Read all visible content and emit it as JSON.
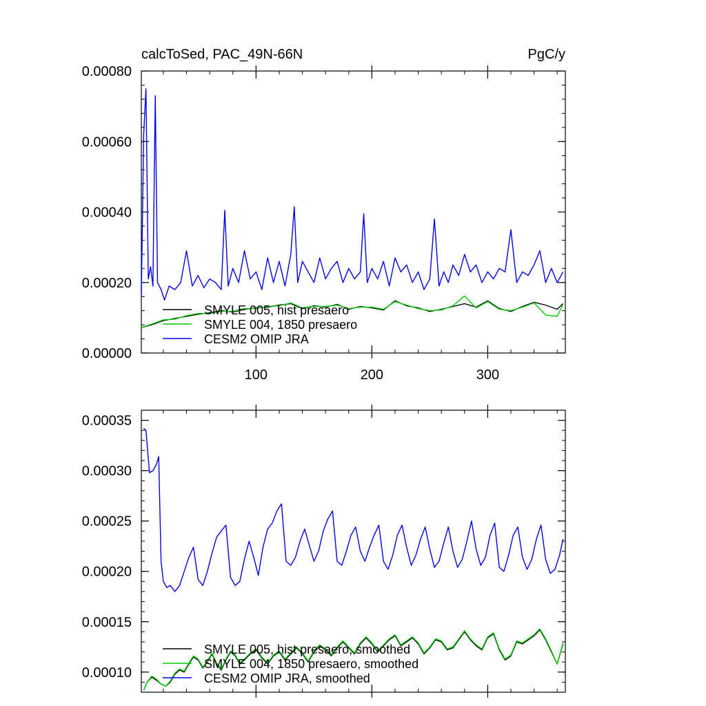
{
  "figure": {
    "title_left": "calcToSed, PAC_49N-66N",
    "title_right": "PgC/y"
  },
  "chart_data": [
    {
      "type": "line",
      "title": "",
      "xlabel": "",
      "ylabel": "",
      "xlim": [
        1,
        367
      ],
      "ylim": [
        0,
        0.0008
      ],
      "xticks": [
        100,
        200,
        300
      ],
      "xtick_labels": [
        "100",
        "200",
        "300"
      ],
      "yticks": [
        0,
        0.0002,
        0.0004,
        0.0006,
        0.0008
      ],
      "ytick_labels": [
        "0.00000",
        "0.00020",
        "0.00040",
        "0.00060",
        "0.00080"
      ],
      "grid": false,
      "legend_position": "lower-left",
      "series": [
        {
          "name": "SMYLE 005, hist presaero",
          "color": "#000000",
          "x": [
            1,
            10,
            20,
            30,
            40,
            50,
            60,
            70,
            80,
            90,
            100,
            110,
            120,
            130,
            140,
            150,
            160,
            170,
            180,
            190,
            200,
            210,
            220,
            230,
            240,
            250,
            260,
            270,
            280,
            290,
            300,
            310,
            320,
            330,
            340,
            350,
            360,
            365
          ],
          "y": [
            7.2e-05,
            8e-05,
            9.2e-05,
            9.8e-05,
            0.000104,
            0.00011,
            0.000114,
            0.00012,
            0.000116,
            0.000124,
            0.000128,
            0.00013,
            0.000136,
            0.00014,
            0.000126,
            0.000134,
            0.00013,
            0.000138,
            0.000124,
            0.000132,
            0.000128,
            0.000122,
            0.000148,
            0.000134,
            0.000128,
            0.000118,
            0.000124,
            0.000132,
            0.00014,
            0.00013,
            0.000148,
            0.000126,
            0.000118,
            0.000132,
            0.000144,
            0.000136,
            0.000124,
            0.00014
          ]
        },
        {
          "name": "SMYLE 004, 1850 presaero",
          "color": "#00cc00",
          "x": [
            1,
            10,
            20,
            30,
            40,
            50,
            60,
            70,
            80,
            90,
            100,
            110,
            120,
            130,
            140,
            150,
            160,
            170,
            180,
            190,
            200,
            210,
            220,
            230,
            240,
            250,
            260,
            270,
            280,
            290,
            300,
            310,
            320,
            330,
            340,
            350,
            360,
            365
          ],
          "y": [
            7.2e-05,
            8.2e-05,
            9.4e-05,
            9.6e-05,
            0.000106,
            0.000112,
            0.000112,
            0.000118,
            0.000118,
            0.000126,
            0.000126,
            0.000132,
            0.000134,
            0.000142,
            0.000128,
            0.000132,
            0.000132,
            0.000136,
            0.000126,
            0.00013,
            0.00013,
            0.000124,
            0.000146,
            0.000136,
            0.000126,
            0.00012,
            0.000122,
            0.000134,
            0.000162,
            0.000128,
            0.000146,
            0.000124,
            0.00012,
            0.00013,
            0.000142,
            0.000108,
            0.000104,
            0.000138
          ]
        },
        {
          "name": "CESM2 OMIP JRA",
          "color": "#0000ee",
          "x": [
            1,
            3,
            5,
            7,
            9,
            11,
            13,
            15,
            18,
            21,
            25,
            30,
            35,
            40,
            45,
            50,
            55,
            60,
            65,
            70,
            73,
            76,
            80,
            85,
            90,
            95,
            100,
            105,
            110,
            115,
            120,
            125,
            130,
            133,
            136,
            140,
            145,
            150,
            155,
            160,
            165,
            170,
            175,
            180,
            185,
            190,
            193,
            196,
            200,
            205,
            210,
            215,
            220,
            225,
            230,
            235,
            240,
            245,
            250,
            254,
            258,
            262,
            266,
            270,
            275,
            280,
            285,
            290,
            295,
            300,
            305,
            310,
            315,
            320,
            325,
            330,
            335,
            340,
            345,
            350,
            355,
            360,
            365
          ],
          "y": [
            0.000165,
            0.00062,
            0.00075,
            0.00021,
            0.000245,
            0.00019,
            0.00073,
            0.0002,
            0.00018,
            0.00015,
            0.00019,
            0.00018,
            0.0002,
            0.00029,
            0.00019,
            0.00022,
            0.000185,
            0.00021,
            0.0002,
            0.00018,
            0.000405,
            0.00019,
            0.00024,
            0.0002,
            0.00029,
            0.00021,
            0.00023,
            0.00018,
            0.00027,
            0.0002,
            0.00026,
            0.00019,
            0.00028,
            0.000415,
            0.0002,
            0.00026,
            0.00023,
            0.0002,
            0.00027,
            0.00021,
            0.00024,
            0.00026,
            0.0002,
            0.00024,
            0.00021,
            0.00023,
            0.000395,
            0.0002,
            0.00024,
            0.00021,
            0.00026,
            0.00019,
            0.00027,
            0.00023,
            0.00025,
            0.0002,
            0.00023,
            0.00018,
            0.00021,
            0.00038,
            0.00019,
            0.00023,
            0.0002,
            0.00025,
            0.00022,
            0.00028,
            0.00023,
            0.00025,
            0.0002,
            0.00023,
            0.00021,
            0.00024,
            0.00023,
            0.00035,
            0.0002,
            0.00023,
            0.00022,
            0.00025,
            0.00029,
            0.0002,
            0.00024,
            0.0002,
            0.00023
          ]
        }
      ]
    },
    {
      "type": "line",
      "title": "",
      "xlabel": "",
      "ylabel": "",
      "xlim": [
        1,
        367
      ],
      "ylim": [
        8e-05,
        0.00036
      ],
      "xticks": [
        100,
        200,
        300
      ],
      "xtick_labels": [
        "",
        "",
        ""
      ],
      "yticks": [
        0.0001,
        0.00015,
        0.0002,
        0.00025,
        0.0003,
        0.00035
      ],
      "ytick_labels": [
        "0.00010",
        "0.00015",
        "0.00020",
        "0.00025",
        "0.00030",
        "0.00035"
      ],
      "grid": false,
      "legend_position": "lower-left",
      "series": [
        {
          "name": "SMYLE 005, hist presaero, smoothed",
          "color": "#000000",
          "x": [
            3,
            6,
            10,
            14,
            18,
            22,
            26,
            30,
            34,
            38,
            42,
            46,
            50,
            54,
            58,
            62,
            66,
            70,
            74,
            78,
            82,
            86,
            90,
            95,
            100,
            105,
            110,
            115,
            120,
            125,
            130,
            135,
            140,
            145,
            150,
            155,
            160,
            165,
            170,
            175,
            180,
            185,
            190,
            195,
            200,
            205,
            210,
            215,
            220,
            225,
            230,
            235,
            240,
            245,
            250,
            255,
            260,
            265,
            270,
            275,
            280,
            285,
            290,
            295,
            300,
            305,
            310,
            315,
            320,
            325,
            330,
            335,
            340,
            345,
            350,
            355,
            360,
            365
          ],
          "y": [
            8.2e-05,
            9e-05,
            9.5e-05,
            9.2e-05,
            8.8e-05,
            8.6e-05,
            9e-05,
            9.8e-05,
            0.000102,
            0.0001,
            0.000108,
            0.000115,
            0.000112,
            0.000104,
            0.00011,
            0.000118,
            0.000108,
            0.000102,
            0.000112,
            0.00012,
            0.000116,
            0.000108,
            0.000112,
            0.000118,
            0.000122,
            0.000114,
            0.000108,
            0.000116,
            0.00012,
            0.000112,
            0.000118,
            0.000124,
            0.000118,
            0.00011,
            0.00012,
            0.000126,
            0.000122,
            0.000116,
            0.000124,
            0.00013,
            0.000124,
            0.000118,
            0.000128,
            0.000134,
            0.000128,
            0.00012,
            0.000126,
            0.000132,
            0.000136,
            0.000126,
            0.00013,
            0.000134,
            0.000128,
            0.000118,
            0.000124,
            0.000132,
            0.00013,
            0.000122,
            0.000124,
            0.000132,
            0.00014,
            0.000132,
            0.000126,
            0.000122,
            0.000134,
            0.000138,
            0.000122,
            0.000112,
            0.000116,
            0.00013,
            0.000128,
            0.000132,
            0.000136,
            0.000142,
            0.000132,
            0.00012,
            0.000108,
            0.000128
          ]
        },
        {
          "name": "SMYLE 004, 1850 presaero, smoothed",
          "color": "#00cc00",
          "x": [
            3,
            6,
            10,
            14,
            18,
            22,
            26,
            30,
            34,
            38,
            42,
            46,
            50,
            54,
            58,
            62,
            66,
            70,
            74,
            78,
            82,
            86,
            90,
            95,
            100,
            105,
            110,
            115,
            120,
            125,
            130,
            135,
            140,
            145,
            150,
            155,
            160,
            165,
            170,
            175,
            180,
            185,
            190,
            195,
            200,
            205,
            210,
            215,
            220,
            225,
            230,
            235,
            240,
            245,
            250,
            255,
            260,
            265,
            270,
            275,
            280,
            285,
            290,
            295,
            300,
            305,
            310,
            315,
            320,
            325,
            330,
            335,
            340,
            345,
            350,
            355,
            360,
            365
          ],
          "y": [
            8.2e-05,
            9e-05,
            9.6e-05,
            9.3e-05,
            8.8e-05,
            8.6e-05,
            9.1e-05,
            9.9e-05,
            0.000103,
            0.000101,
            0.000109,
            0.000116,
            0.000113,
            0.000105,
            0.000111,
            0.000119,
            0.000109,
            0.000103,
            0.000113,
            0.000121,
            0.000117,
            0.000109,
            0.000113,
            0.000119,
            0.000123,
            0.000115,
            0.000109,
            0.000117,
            0.000121,
            0.000113,
            0.000119,
            0.000125,
            0.000119,
            0.000111,
            0.000121,
            0.000127,
            0.000123,
            0.000117,
            0.000125,
            0.000131,
            0.000125,
            0.000119,
            0.000129,
            0.000135,
            0.000129,
            0.000121,
            0.000127,
            0.000133,
            0.000137,
            0.000127,
            0.000131,
            0.000135,
            0.000129,
            0.000119,
            0.000125,
            0.000133,
            0.000131,
            0.000123,
            0.000125,
            0.000133,
            0.000141,
            0.000133,
            0.000127,
            0.000123,
            0.000135,
            0.000139,
            0.000123,
            0.000113,
            0.000117,
            0.000131,
            0.000129,
            0.000133,
            0.000137,
            0.000143,
            0.000133,
            0.000121,
            0.000108,
            0.000129
          ]
        },
        {
          "name": "CESM2 OMIP JRA, smoothed",
          "color": "#0000ee",
          "x": [
            3,
            5,
            8,
            11,
            14,
            16,
            18,
            20,
            23,
            26,
            30,
            34,
            38,
            42,
            46,
            50,
            54,
            58,
            62,
            66,
            70,
            74,
            78,
            82,
            86,
            90,
            94,
            98,
            102,
            106,
            110,
            114,
            118,
            122,
            126,
            130,
            134,
            138,
            142,
            146,
            150,
            154,
            158,
            162,
            166,
            170,
            174,
            178,
            182,
            186,
            190,
            194,
            198,
            202,
            206,
            210,
            214,
            218,
            222,
            226,
            230,
            234,
            238,
            242,
            246,
            250,
            254,
            258,
            262,
            266,
            270,
            274,
            278,
            282,
            286,
            290,
            294,
            298,
            302,
            306,
            310,
            314,
            318,
            322,
            326,
            330,
            334,
            338,
            342,
            346,
            350,
            354,
            358,
            362,
            365
          ],
          "y": [
            0.000342,
            0.00034,
            0.000298,
            0.0003,
            0.000306,
            0.000314,
            0.00021,
            0.00019,
            0.000184,
            0.000186,
            0.00018,
            0.000186,
            0.0002,
            0.000214,
            0.000224,
            0.000192,
            0.000186,
            0.0002,
            0.000218,
            0.000234,
            0.00024,
            0.000246,
            0.000194,
            0.000186,
            0.00019,
            0.000212,
            0.00023,
            0.000214,
            0.000196,
            0.000224,
            0.000242,
            0.000248,
            0.00026,
            0.000267,
            0.00021,
            0.000206,
            0.000214,
            0.00023,
            0.000242,
            0.000226,
            0.00021,
            0.00022,
            0.00024,
            0.000252,
            0.00026,
            0.00021,
            0.000206,
            0.00022,
            0.000236,
            0.000244,
            0.00022,
            0.00021,
            0.000224,
            0.000236,
            0.000246,
            0.00021,
            0.000202,
            0.000216,
            0.000236,
            0.000246,
            0.000224,
            0.000206,
            0.000216,
            0.000232,
            0.000244,
            0.000222,
            0.000204,
            0.00021,
            0.000228,
            0.000244,
            0.00022,
            0.000204,
            0.000212,
            0.00023,
            0.00025,
            0.000222,
            0.000206,
            0.000214,
            0.000236,
            0.000248,
            0.000204,
            0.0002,
            0.000216,
            0.000236,
            0.000244,
            0.000214,
            0.000202,
            0.000212,
            0.000232,
            0.000246,
            0.000212,
            0.000198,
            0.000202,
            0.000216,
            0.000232
          ]
        }
      ]
    }
  ]
}
